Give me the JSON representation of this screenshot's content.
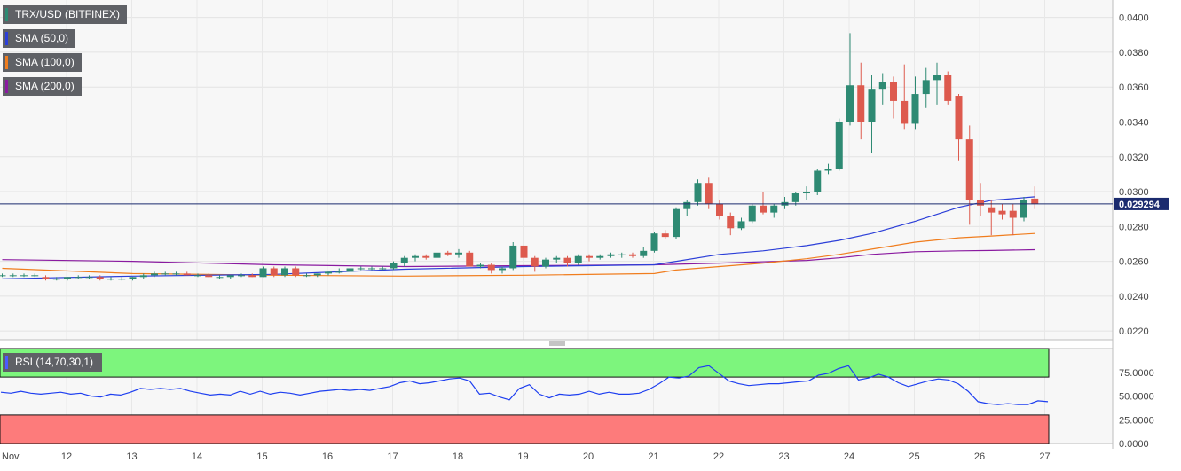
{
  "legend": {
    "symbol": "TRX/USD (BITFINEX)",
    "sma50": "SMA (50,0)",
    "sma100": "SMA (100,0)",
    "sma200": "SMA (200,0)",
    "rsi": "RSI (14,70,30,1)"
  },
  "colors": {
    "up": "#2e8a73",
    "down": "#dd5a4e",
    "sma50": "#2c3fd8",
    "sma100": "#f07d1e",
    "sma200": "#8a1aa0",
    "rsi_line": "#1e3ff0",
    "overbought": "#7df57d",
    "oversold": "#fd7b7b",
    "price_line": "#1b2b6e"
  },
  "chart_data": [
    {
      "type": "candlestick",
      "title": "TRX/USD (BITFINEX)",
      "ylim": [
        0.0215,
        0.041
      ],
      "y_ticks": [
        "0.0400",
        "0.0380",
        "0.0360",
        "0.0340",
        "0.0320",
        "0.0300",
        "0.0280",
        "0.0260",
        "0.0240",
        "0.0220"
      ],
      "x_ticks": [
        "Nov",
        "12",
        "13",
        "14",
        "15",
        "16",
        "17",
        "18",
        "19",
        "20",
        "21",
        "22",
        "23",
        "24",
        "25",
        "26",
        "27"
      ],
      "last_price": "0.029294",
      "candles": [
        [
          0.0252,
          0.0253,
          0.0251,
          0.0252
        ],
        [
          0.0252,
          0.0253,
          0.0251,
          0.0252
        ],
        [
          0.0252,
          0.0253,
          0.0251,
          0.0252
        ],
        [
          0.0252,
          0.0253,
          0.0251,
          0.0252
        ],
        [
          0.0251,
          0.0252,
          0.0249,
          0.025
        ],
        [
          0.025,
          0.0251,
          0.0249,
          0.025
        ],
        [
          0.025,
          0.0251,
          0.0249,
          0.0251
        ],
        [
          0.0251,
          0.0252,
          0.025,
          0.0251
        ],
        [
          0.0251,
          0.0252,
          0.025,
          0.0251
        ],
        [
          0.0251,
          0.0252,
          0.0249,
          0.025
        ],
        [
          0.025,
          0.0251,
          0.0249,
          0.025
        ],
        [
          0.025,
          0.0251,
          0.0249,
          0.025
        ],
        [
          0.025,
          0.0251,
          0.0249,
          0.0251
        ],
        [
          0.0251,
          0.0253,
          0.025,
          0.0252
        ],
        [
          0.0252,
          0.0254,
          0.0251,
          0.0253
        ],
        [
          0.0253,
          0.0254,
          0.0252,
          0.0253
        ],
        [
          0.0253,
          0.0254,
          0.0252,
          0.0253
        ],
        [
          0.0253,
          0.0254,
          0.0252,
          0.0252
        ],
        [
          0.0252,
          0.0253,
          0.0251,
          0.0252
        ],
        [
          0.0252,
          0.0253,
          0.0251,
          0.0251
        ],
        [
          0.0251,
          0.0252,
          0.025,
          0.0251
        ],
        [
          0.0251,
          0.0252,
          0.025,
          0.0252
        ],
        [
          0.0252,
          0.0253,
          0.0251,
          0.0252
        ],
        [
          0.0252,
          0.0253,
          0.0251,
          0.0251
        ],
        [
          0.0251,
          0.0257,
          0.0251,
          0.0256
        ],
        [
          0.0256,
          0.0257,
          0.0251,
          0.0252
        ],
        [
          0.0252,
          0.0257,
          0.0251,
          0.0256
        ],
        [
          0.0256,
          0.0257,
          0.0251,
          0.0252
        ],
        [
          0.0252,
          0.0253,
          0.0251,
          0.0252
        ],
        [
          0.0252,
          0.0253,
          0.0251,
          0.0253
        ],
        [
          0.0253,
          0.0254,
          0.0252,
          0.0254
        ],
        [
          0.0254,
          0.0256,
          0.0253,
          0.0254
        ],
        [
          0.0254,
          0.0257,
          0.0253,
          0.0256
        ],
        [
          0.0256,
          0.0257,
          0.0255,
          0.0256
        ],
        [
          0.0256,
          0.0257,
          0.0255,
          0.0256
        ],
        [
          0.0256,
          0.0257,
          0.0255,
          0.0256
        ],
        [
          0.0256,
          0.026,
          0.0255,
          0.0259
        ],
        [
          0.0259,
          0.0263,
          0.0257,
          0.0262
        ],
        [
          0.0262,
          0.0264,
          0.026,
          0.0263
        ],
        [
          0.0263,
          0.0264,
          0.0261,
          0.0262
        ],
        [
          0.0262,
          0.0266,
          0.0261,
          0.0265
        ],
        [
          0.0265,
          0.0266,
          0.0263,
          0.0264
        ],
        [
          0.0264,
          0.0267,
          0.0262,
          0.0265
        ],
        [
          0.0265,
          0.0266,
          0.0257,
          0.0257
        ],
        [
          0.0257,
          0.0259,
          0.0256,
          0.0258
        ],
        [
          0.0258,
          0.0259,
          0.0253,
          0.0255
        ],
        [
          0.0255,
          0.0257,
          0.0253,
          0.0256
        ],
        [
          0.0256,
          0.0271,
          0.0255,
          0.0269
        ],
        [
          0.0269,
          0.027,
          0.026,
          0.0262
        ],
        [
          0.0262,
          0.0263,
          0.0254,
          0.0257
        ],
        [
          0.0257,
          0.0262,
          0.0256,
          0.0261
        ],
        [
          0.0261,
          0.0263,
          0.0259,
          0.0262
        ],
        [
          0.0262,
          0.0263,
          0.0257,
          0.0259
        ],
        [
          0.0259,
          0.0264,
          0.0258,
          0.0263
        ],
        [
          0.0263,
          0.0264,
          0.026,
          0.0262
        ],
        [
          0.0262,
          0.0264,
          0.0261,
          0.0263
        ],
        [
          0.0263,
          0.0265,
          0.0262,
          0.0264
        ],
        [
          0.0264,
          0.0265,
          0.0262,
          0.0264
        ],
        [
          0.0264,
          0.0265,
          0.0262,
          0.0263
        ],
        [
          0.0263,
          0.0268,
          0.0262,
          0.0266
        ],
        [
          0.0266,
          0.0277,
          0.0265,
          0.0276
        ],
        [
          0.0276,
          0.0278,
          0.0273,
          0.0274
        ],
        [
          0.0274,
          0.0291,
          0.0273,
          0.029
        ],
        [
          0.029,
          0.0295,
          0.0286,
          0.0294
        ],
        [
          0.0294,
          0.0307,
          0.0292,
          0.0305
        ],
        [
          0.0305,
          0.0308,
          0.029,
          0.0293
        ],
        [
          0.0293,
          0.0295,
          0.0284,
          0.0286
        ],
        [
          0.0286,
          0.0288,
          0.0275,
          0.0279
        ],
        [
          0.0279,
          0.0285,
          0.0278,
          0.0283
        ],
        [
          0.0283,
          0.0293,
          0.0282,
          0.0292
        ],
        [
          0.0292,
          0.03,
          0.0287,
          0.0288
        ],
        [
          0.0288,
          0.0293,
          0.0285,
          0.0292
        ],
        [
          0.0292,
          0.0297,
          0.029,
          0.0294
        ],
        [
          0.0294,
          0.03,
          0.0292,
          0.0299
        ],
        [
          0.0299,
          0.0303,
          0.0295,
          0.03
        ],
        [
          0.03,
          0.0313,
          0.0298,
          0.0312
        ],
        [
          0.0312,
          0.0316,
          0.031,
          0.0313
        ],
        [
          0.0313,
          0.0342,
          0.0312,
          0.034
        ],
        [
          0.034,
          0.0391,
          0.0338,
          0.0361
        ],
        [
          0.0361,
          0.0374,
          0.033,
          0.034
        ],
        [
          0.034,
          0.0367,
          0.0322,
          0.0359
        ],
        [
          0.0359,
          0.0368,
          0.035,
          0.0363
        ],
        [
          0.0363,
          0.0366,
          0.0342,
          0.0352
        ],
        [
          0.0352,
          0.0373,
          0.0336,
          0.0339
        ],
        [
          0.0339,
          0.0366,
          0.0336,
          0.0356
        ],
        [
          0.0356,
          0.0371,
          0.0348,
          0.0364
        ],
        [
          0.0364,
          0.0374,
          0.035,
          0.0367
        ],
        [
          0.0367,
          0.0369,
          0.035,
          0.0352
        ],
        [
          0.0355,
          0.0356,
          0.0318,
          0.033
        ],
        [
          0.033,
          0.0338,
          0.0281,
          0.0295
        ],
        [
          0.0295,
          0.0305,
          0.0286,
          0.0292
        ],
        [
          0.0291,
          0.0295,
          0.0275,
          0.0288
        ],
        [
          0.0289,
          0.0293,
          0.0284,
          0.0287
        ],
        [
          0.0289,
          0.0293,
          0.0275,
          0.0285
        ],
        [
          0.0285,
          0.0297,
          0.0283,
          0.0295
        ],
        [
          0.0296,
          0.0303,
          0.029,
          0.0293
        ]
      ],
      "sma50": [
        [
          0,
          0.025
        ],
        [
          12,
          0.02515
        ],
        [
          25,
          0.02525
        ],
        [
          37,
          0.02555
        ],
        [
          48,
          0.0257
        ],
        [
          60,
          0.0258
        ],
        [
          62,
          0.026
        ],
        [
          66,
          0.0264
        ],
        [
          70,
          0.0266
        ],
        [
          74,
          0.0269
        ],
        [
          77,
          0.0272
        ],
        [
          80,
          0.0276
        ],
        [
          84,
          0.0283
        ],
        [
          88,
          0.0291
        ],
        [
          91,
          0.0295
        ],
        [
          95,
          0.0297
        ]
      ],
      "sma100": [
        [
          0,
          0.0256
        ],
        [
          12,
          0.0253
        ],
        [
          25,
          0.0252
        ],
        [
          37,
          0.02515
        ],
        [
          48,
          0.0252
        ],
        [
          60,
          0.0253
        ],
        [
          62,
          0.0255
        ],
        [
          66,
          0.0257
        ],
        [
          70,
          0.0259
        ],
        [
          74,
          0.02615
        ],
        [
          77,
          0.0264
        ],
        [
          80,
          0.0267
        ],
        [
          84,
          0.0271
        ],
        [
          88,
          0.02735
        ],
        [
          91,
          0.02745
        ],
        [
          95,
          0.0276
        ]
      ],
      "sma200": [
        [
          0,
          0.0261
        ],
        [
          12,
          0.026
        ],
        [
          25,
          0.0258
        ],
        [
          37,
          0.0257
        ],
        [
          48,
          0.02575
        ],
        [
          60,
          0.0258
        ],
        [
          66,
          0.0259
        ],
        [
          74,
          0.02605
        ],
        [
          77,
          0.0262
        ],
        [
          80,
          0.0264
        ],
        [
          84,
          0.02655
        ],
        [
          88,
          0.0266
        ],
        [
          91,
          0.02662
        ],
        [
          95,
          0.02667
        ]
      ]
    },
    {
      "type": "line",
      "title": "RSI (14,70,30,1)",
      "ylim": [
        0,
        100
      ],
      "y_ticks": [
        "75.0000",
        "50.0000",
        "25.0000",
        "0.0000"
      ],
      "overbought": 70,
      "oversold": 30,
      "values": [
        54,
        53,
        55,
        53,
        52,
        53,
        54,
        52,
        53,
        50,
        49,
        52,
        51,
        54,
        58,
        57,
        58,
        57,
        58,
        55,
        53,
        51,
        52,
        51,
        55,
        52,
        55,
        52,
        54,
        53,
        51,
        53,
        55,
        56,
        57,
        56,
        57,
        56,
        58,
        60,
        64,
        66,
        63,
        64,
        66,
        68,
        69,
        66,
        52,
        53,
        49,
        46,
        58,
        62,
        52,
        48,
        52,
        51,
        52,
        55,
        52,
        54,
        52,
        52,
        53,
        57,
        63,
        70,
        69,
        71,
        80,
        82,
        74,
        66,
        63,
        61,
        62,
        63,
        63,
        64,
        65,
        66,
        72,
        74,
        79,
        82,
        67,
        69,
        73,
        70,
        64,
        60,
        63,
        66,
        68,
        67,
        63,
        55,
        44,
        42,
        41,
        42,
        41,
        41,
        45,
        44
      ]
    }
  ]
}
